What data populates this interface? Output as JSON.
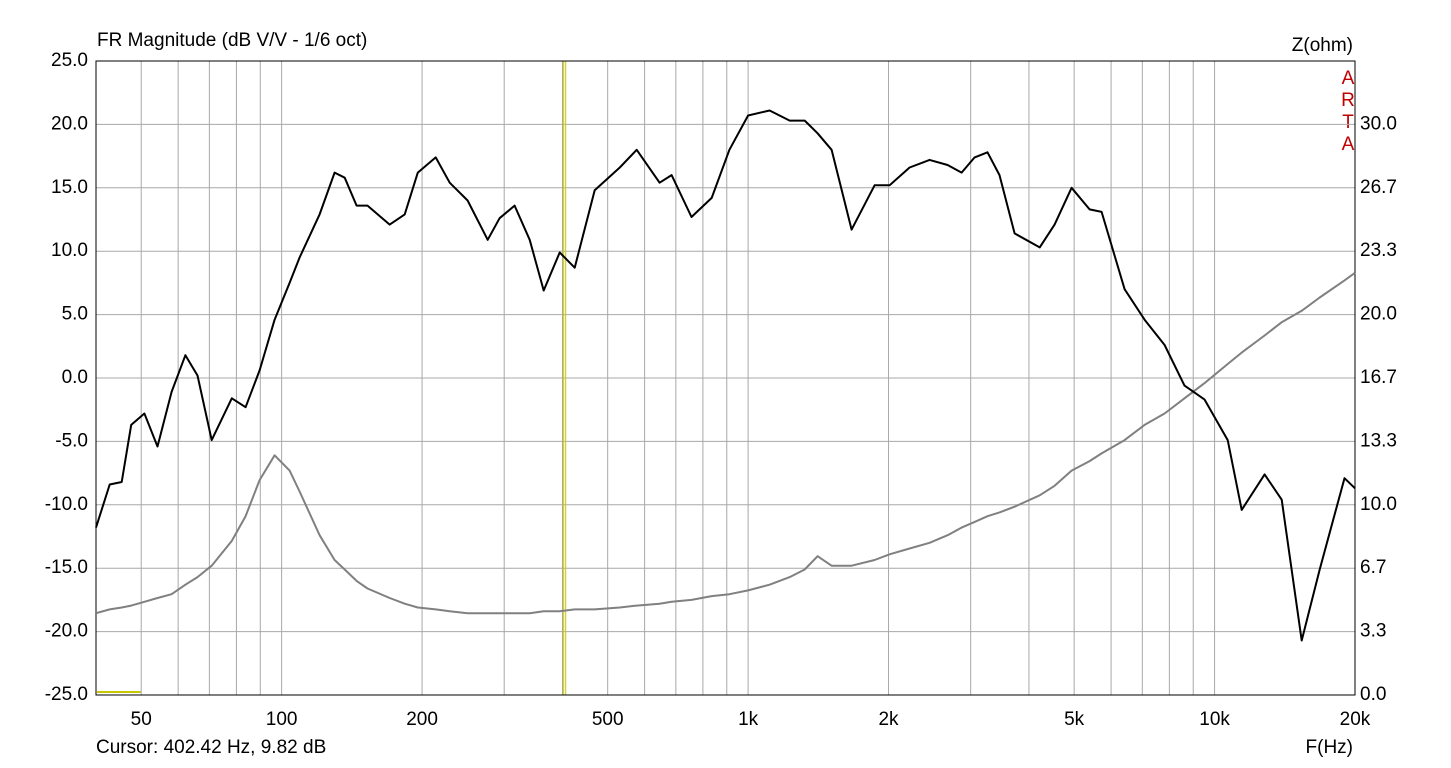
{
  "chart_data": {
    "type": "line",
    "title": "FR Magnitude (dB V/V - 1/6 oct)",
    "x_label": "F(Hz)",
    "y2_label": "Z(ohm)",
    "watermark": "ARTA",
    "cursor_label": "Cursor: 402.42 Hz, 9.82 dB",
    "cursor_x": 402.42,
    "cursor_color": "#c8c800",
    "log_x": true,
    "grid": true,
    "xlim": [
      40,
      20000
    ],
    "xticks": [
      50,
      100,
      200,
      500,
      {
        "value": 1000,
        "label": "1k"
      },
      {
        "value": 2000,
        "label": "2k"
      },
      {
        "value": 5000,
        "label": "5k"
      },
      {
        "value": 10000,
        "label": "10k"
      },
      {
        "value": 20000,
        "label": "20k"
      }
    ],
    "xminor_ticks": [
      40,
      60,
      70,
      80,
      90,
      300,
      400,
      600,
      700,
      800,
      900,
      3000,
      4000,
      6000,
      7000,
      8000,
      9000
    ],
    "ylim": [
      -25,
      25
    ],
    "yticks": [
      {
        "value": -25,
        "label": "-25.0"
      },
      {
        "value": -20,
        "label": "-20.0"
      },
      {
        "value": -15,
        "label": "-15.0"
      },
      {
        "value": -10,
        "label": "-10.0"
      },
      {
        "value": -5,
        "label": "-5.0"
      },
      {
        "value": 0,
        "label": "0.0"
      },
      {
        "value": 5,
        "label": "5.0"
      },
      {
        "value": 10,
        "label": "10.0"
      },
      {
        "value": 15,
        "label": "15.0"
      },
      {
        "value": 20,
        "label": "20.0"
      },
      {
        "value": 25,
        "label": "25.0"
      }
    ],
    "y2lim": [
      0,
      33.333
    ],
    "y2ticks": [
      {
        "value": 0,
        "label": "0.0"
      },
      {
        "value": 3.333,
        "label": "3.3"
      },
      {
        "value": 6.667,
        "label": "6.7"
      },
      {
        "value": 10,
        "label": "10.0"
      },
      {
        "value": 13.333,
        "label": "13.3"
      },
      {
        "value": 16.667,
        "label": "16.7"
      },
      {
        "value": 20,
        "label": "20.0"
      },
      {
        "value": 23.333,
        "label": "23.3"
      },
      {
        "value": 26.667,
        "label": "26.7"
      },
      {
        "value": 30,
        "label": "30.0"
      }
    ],
    "x": [
      40,
      42.8,
      45.4,
      47.6,
      50.8,
      54.2,
      58.1,
      62.2,
      66,
      70.8,
      78.2,
      83.7,
      89.7,
      96.6,
      104,
      109.3,
      120.6,
      129.9,
      136.5,
      144.8,
      152.8,
      170.5,
      183.6,
      195.8,
      213.9,
      229.2,
      250.4,
      276.5,
      293.3,
      315.8,
      340.2,
      364.6,
      394.6,
      424.8,
      469,
      530.7,
      577,
      645.9,
      685.5,
      756.3,
      835.5,
      912,
      1000,
      1112,
      1228,
      1322,
      1409,
      1510,
      1667,
      1867,
      2011,
      2219,
      2449,
      2677,
      2868,
      3059,
      3260,
      3459,
      3727,
      4217,
      4541,
      4938,
      5397,
      5726,
      6414,
      7079,
      7812,
      8621,
      9520,
      10670,
      11430,
      12800,
      13930,
      15370,
      16800,
      18990,
      20000
    ],
    "series": [
      {
        "color": "#000000",
        "values": [
          -11.8,
          -8.4,
          -8.2,
          -3.7,
          -2.8,
          -5.4,
          -1.1,
          1.8,
          0.2,
          -4.9,
          -1.6,
          -2.3,
          0.6,
          4.6,
          7.5,
          9.5,
          12.9,
          16.2,
          15.8,
          13.6,
          13.6,
          12.1,
          12.9,
          16.2,
          17.4,
          15.4,
          14.0,
          10.9,
          12.6,
          13.6,
          10.9,
          6.9,
          9.9,
          8.7,
          14.8,
          16.6,
          18.0,
          15.4,
          16.0,
          12.7,
          14.2,
          18.0,
          20.7,
          21.1,
          20.3,
          20.3,
          19.3,
          18.0,
          11.7,
          15.2,
          15.2,
          16.6,
          17.2,
          16.8,
          16.2,
          17.4,
          17.8,
          16.0,
          11.4,
          10.3,
          12.1,
          15.0,
          13.3,
          13.1,
          7.0,
          4.6,
          2.6,
          -0.6,
          -1.7,
          -4.9,
          -10.4,
          -7.6,
          -9.6,
          -20.7,
          -15.1,
          -7.9,
          -8.7
        ]
      },
      {
        "color": "#808080",
        "axis": "y2",
        "values": [
          4.3,
          4.5,
          4.6,
          4.7,
          4.9,
          5.1,
          5.3,
          5.8,
          6.2,
          6.8,
          8.1,
          9.4,
          11.3,
          12.6,
          11.8,
          10.7,
          8.4,
          7.1,
          6.6,
          6.0,
          5.6,
          5.1,
          4.8,
          4.6,
          4.5,
          4.4,
          4.3,
          4.3,
          4.3,
          4.3,
          4.3,
          4.4,
          4.4,
          4.5,
          4.5,
          4.6,
          4.7,
          4.8,
          4.9,
          5.0,
          5.2,
          5.3,
          5.5,
          5.8,
          6.2,
          6.6,
          7.3,
          6.8,
          6.8,
          7.1,
          7.4,
          7.7,
          8.0,
          8.4,
          8.8,
          9.1,
          9.4,
          9.6,
          9.9,
          10.5,
          11.0,
          11.8,
          12.3,
          12.7,
          13.4,
          14.2,
          14.8,
          15.6,
          16.4,
          17.4,
          18.0,
          18.9,
          19.6,
          20.2,
          20.9,
          21.8,
          22.2
        ]
      }
    ]
  }
}
